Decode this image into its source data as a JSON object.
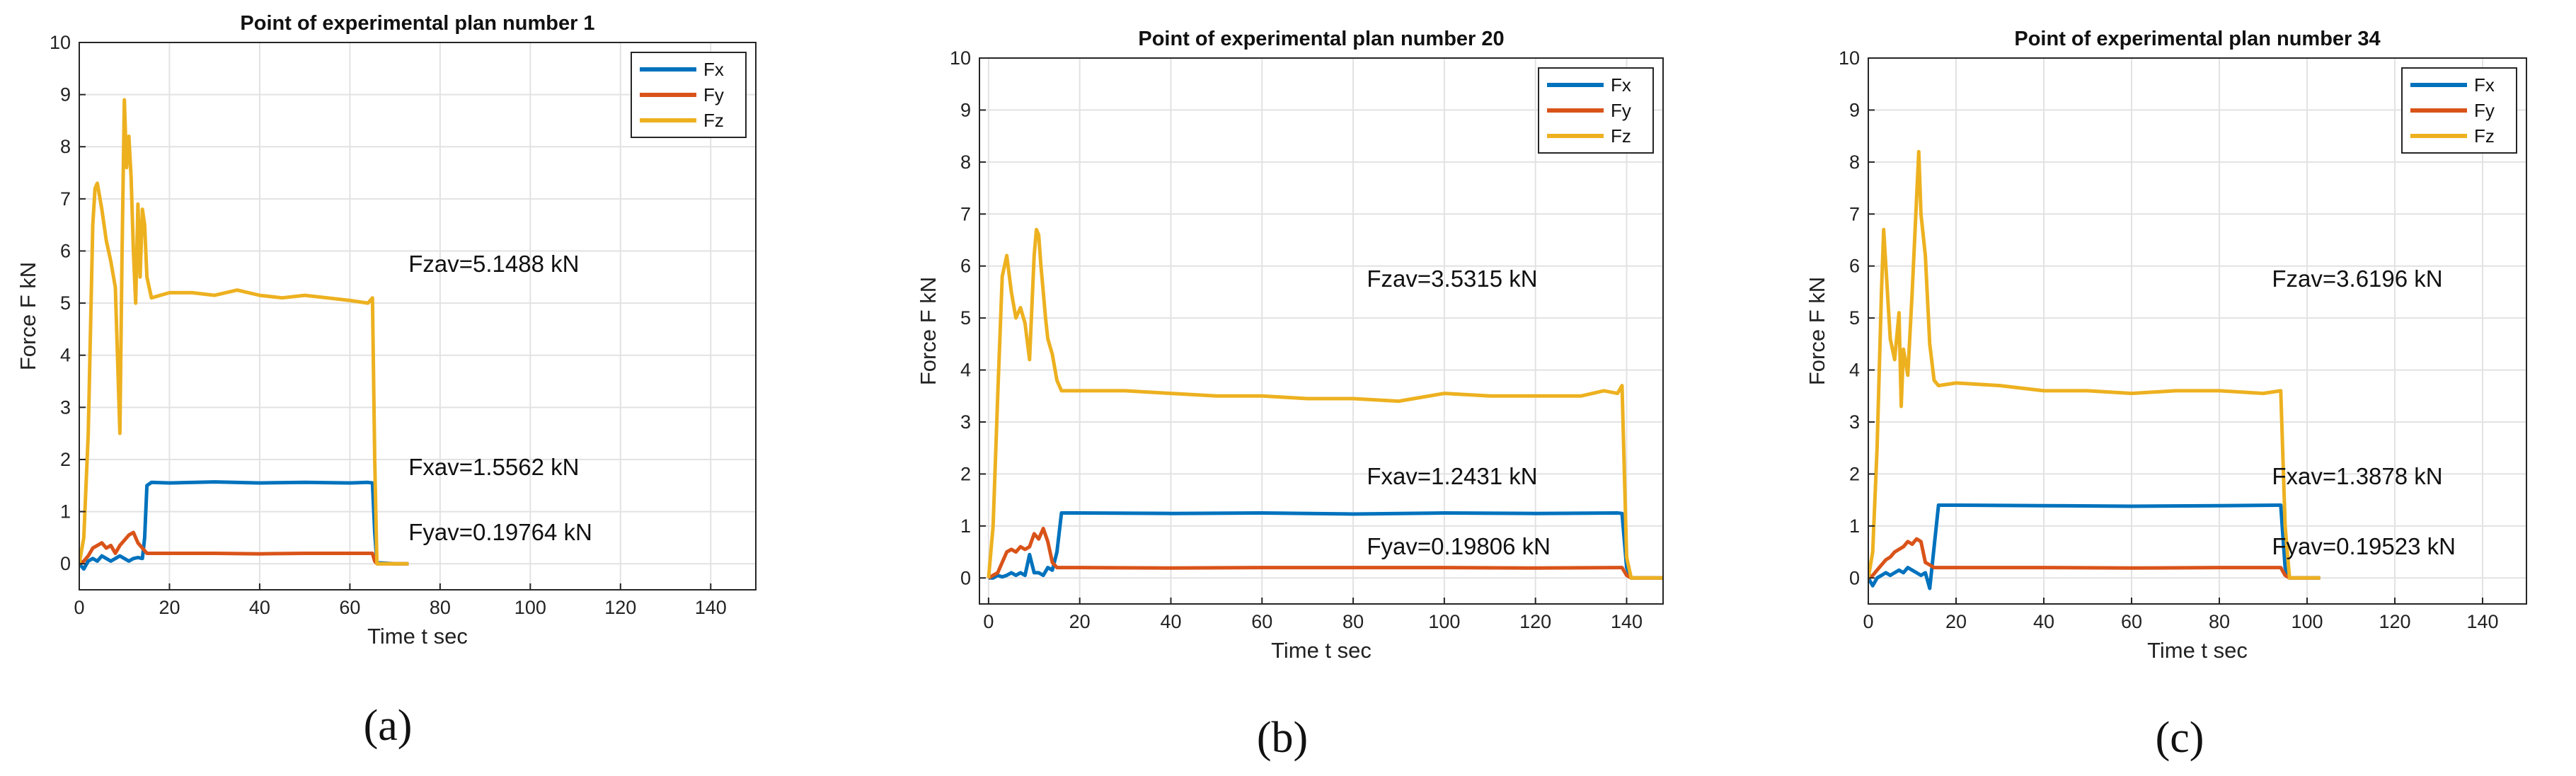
{
  "chart_data": [
    {
      "type": "line",
      "caption": "(a)",
      "title": "Point of experimental plan number 1",
      "xlabel": "Time t sec",
      "ylabel": "Force F kN",
      "xlim": [
        0,
        150
      ],
      "ylim": [
        -0.5,
        10
      ],
      "xticks": [
        0,
        20,
        40,
        60,
        80,
        100,
        120,
        140
      ],
      "yticks": [
        0,
        1,
        2,
        3,
        4,
        5,
        6,
        7,
        8,
        9,
        10
      ],
      "grid": true,
      "legend_position": "top-right",
      "annotations": [
        {
          "text": "Fzav=5.1488 kN",
          "x": 73,
          "y": 5.6
        },
        {
          "text": "Fxav=1.5562 kN",
          "x": 73,
          "y": 1.7
        },
        {
          "text": "Fyav=0.19764 kN",
          "x": 73,
          "y": 0.45
        }
      ],
      "series": [
        {
          "name": "Fx",
          "color": "#0072BD",
          "x": [
            0,
            1,
            2,
            3,
            4,
            5,
            6,
            7,
            8,
            9,
            10,
            11,
            12,
            13,
            14,
            14.5,
            15,
            16,
            20,
            30,
            40,
            50,
            60,
            64,
            65,
            65.5,
            66,
            70,
            73
          ],
          "y": [
            0,
            -0.1,
            0.05,
            0.1,
            0.05,
            0.15,
            0.1,
            0.05,
            0.1,
            0.15,
            0.1,
            0.05,
            0.1,
            0.12,
            0.1,
            0.5,
            1.5,
            1.56,
            1.55,
            1.57,
            1.55,
            1.56,
            1.55,
            1.56,
            1.55,
            0.6,
            0.02,
            0,
            0
          ]
        },
        {
          "name": "Fy",
          "color": "#D95319",
          "x": [
            0,
            1,
            2,
            3,
            4,
            5,
            6,
            7,
            8,
            9,
            10,
            11,
            12,
            13,
            14,
            15,
            20,
            30,
            40,
            50,
            60,
            65,
            65.5,
            66,
            70,
            73
          ],
          "y": [
            0,
            0.05,
            0.15,
            0.3,
            0.35,
            0.4,
            0.3,
            0.35,
            0.2,
            0.35,
            0.45,
            0.55,
            0.6,
            0.4,
            0.3,
            0.2,
            0.2,
            0.2,
            0.19,
            0.2,
            0.2,
            0.2,
            0.05,
            0,
            0,
            0
          ]
        },
        {
          "name": "Fz",
          "color": "#EDB120",
          "x": [
            0,
            1,
            2,
            3,
            3.5,
            4,
            5,
            6,
            7,
            8,
            9,
            9.5,
            10,
            10.5,
            11,
            11.5,
            12,
            12.5,
            13,
            13.5,
            14,
            14.5,
            15,
            16,
            20,
            25,
            30,
            35,
            40,
            45,
            50,
            55,
            60,
            64,
            65,
            65.5,
            66,
            70,
            73
          ],
          "y": [
            0,
            0.5,
            2.5,
            6.5,
            7.2,
            7.3,
            6.8,
            6.2,
            5.8,
            5.3,
            2.5,
            6.0,
            8.9,
            7.6,
            8.2,
            7.4,
            6.0,
            5.0,
            6.9,
            5.5,
            6.8,
            6.5,
            5.5,
            5.1,
            5.2,
            5.2,
            5.15,
            5.25,
            5.15,
            5.1,
            5.15,
            5.1,
            5.05,
            5.0,
            5.1,
            2.0,
            0,
            0,
            0
          ]
        }
      ]
    },
    {
      "type": "line",
      "caption": "(b)",
      "title": "Point of experimental plan number 20",
      "xlabel": "Time t sec",
      "ylabel": "Force F kN",
      "xlim": [
        -2,
        148
      ],
      "ylim": [
        -0.5,
        10
      ],
      "xticks": [
        0,
        20,
        40,
        60,
        80,
        100,
        120,
        140
      ],
      "yticks": [
        0,
        1,
        2,
        3,
        4,
        5,
        6,
        7,
        8,
        9,
        10
      ],
      "grid": true,
      "legend_position": "top-right",
      "annotations": [
        {
          "text": "Fzav=3.5315 kN",
          "x": 83,
          "y": 5.6
        },
        {
          "text": "Fxav=1.2431 kN",
          "x": 83,
          "y": 1.8
        },
        {
          "text": "Fyav=0.19806 kN",
          "x": 83,
          "y": 0.45
        }
      ],
      "series": [
        {
          "name": "Fx",
          "color": "#0072BD",
          "x": [
            0,
            1,
            2,
            3,
            4,
            5,
            6,
            7,
            8,
            9,
            10,
            11,
            12,
            13,
            14,
            15,
            16,
            20,
            40,
            60,
            80,
            100,
            120,
            138,
            139,
            140,
            141,
            145,
            148
          ],
          "y": [
            0,
            0,
            0.05,
            0.02,
            0.05,
            0.1,
            0.05,
            0.1,
            0.05,
            0.45,
            0.1,
            0.1,
            0.05,
            0.2,
            0.15,
            0.5,
            1.25,
            1.25,
            1.24,
            1.25,
            1.23,
            1.25,
            1.24,
            1.25,
            1.24,
            0.2,
            0,
            0,
            0
          ]
        },
        {
          "name": "Fy",
          "color": "#D95319",
          "x": [
            0,
            1,
            2,
            3,
            4,
            5,
            6,
            7,
            8,
            9,
            10,
            11,
            12,
            13,
            14,
            15,
            16,
            20,
            40,
            60,
            80,
            100,
            120,
            139,
            140,
            141,
            145,
            148
          ],
          "y": [
            0,
            0.05,
            0.1,
            0.3,
            0.5,
            0.55,
            0.5,
            0.6,
            0.55,
            0.6,
            0.85,
            0.75,
            0.95,
            0.7,
            0.3,
            0.2,
            0.2,
            0.2,
            0.19,
            0.2,
            0.2,
            0.2,
            0.19,
            0.2,
            0.05,
            0,
            0,
            0
          ]
        },
        {
          "name": "Fz",
          "color": "#EDB120",
          "x": [
            0,
            1,
            2,
            3,
            4,
            5,
            6,
            7,
            8,
            9,
            10,
            10.5,
            11,
            11.5,
            12,
            12.5,
            13,
            14,
            15,
            16,
            20,
            30,
            40,
            50,
            60,
            70,
            80,
            90,
            100,
            110,
            120,
            130,
            135,
            138,
            139,
            140,
            141,
            145,
            148
          ],
          "y": [
            0,
            1.0,
            3.5,
            5.8,
            6.2,
            5.5,
            5.0,
            5.2,
            4.9,
            4.2,
            6.2,
            6.7,
            6.6,
            6.0,
            5.5,
            5.0,
            4.6,
            4.3,
            3.8,
            3.6,
            3.6,
            3.6,
            3.55,
            3.5,
            3.5,
            3.45,
            3.45,
            3.4,
            3.55,
            3.5,
            3.5,
            3.5,
            3.6,
            3.55,
            3.7,
            0.4,
            0,
            0,
            0
          ]
        }
      ]
    },
    {
      "type": "line",
      "caption": "(c)",
      "title": "Point of experimental plan number 34",
      "xlabel": "Time t sec",
      "ylabel": "Force F kN",
      "xlim": [
        0,
        150
      ],
      "ylim": [
        -0.5,
        10
      ],
      "xticks": [
        0,
        20,
        40,
        60,
        80,
        100,
        120,
        140
      ],
      "yticks": [
        0,
        1,
        2,
        3,
        4,
        5,
        6,
        7,
        8,
        9,
        10
      ],
      "grid": true,
      "legend_position": "top-right",
      "annotations": [
        {
          "text": "Fzav=3.6196 kN",
          "x": 92,
          "y": 5.6
        },
        {
          "text": "Fxav=1.3878 kN",
          "x": 92,
          "y": 1.8
        },
        {
          "text": "Fyav=0.19523 kN",
          "x": 92,
          "y": 0.45
        }
      ],
      "series": [
        {
          "name": "Fx",
          "color": "#0072BD",
          "x": [
            0,
            1,
            2,
            3,
            4,
            5,
            6,
            7,
            8,
            9,
            10,
            11,
            12,
            13,
            14,
            15,
            16,
            20,
            40,
            60,
            80,
            93,
            94,
            95,
            96,
            100,
            103
          ],
          "y": [
            0,
            -0.15,
            0,
            0.05,
            0.1,
            0.05,
            0.1,
            0.15,
            0.1,
            0.2,
            0.15,
            0.1,
            0.05,
            0.1,
            -0.2,
            0.6,
            1.4,
            1.4,
            1.39,
            1.38,
            1.39,
            1.4,
            1.4,
            0.2,
            0,
            0,
            0
          ]
        },
        {
          "name": "Fy",
          "color": "#D95319",
          "x": [
            0,
            1,
            2,
            3,
            4,
            5,
            6,
            7,
            8,
            9,
            10,
            11,
            12,
            13,
            14,
            15,
            20,
            40,
            60,
            80,
            94,
            95,
            96,
            100,
            103
          ],
          "y": [
            0,
            0.05,
            0.15,
            0.25,
            0.35,
            0.4,
            0.5,
            0.55,
            0.6,
            0.7,
            0.65,
            0.75,
            0.7,
            0.3,
            0.25,
            0.2,
            0.2,
            0.2,
            0.19,
            0.2,
            0.2,
            0.05,
            0,
            0,
            0
          ]
        },
        {
          "name": "Fz",
          "color": "#EDB120",
          "x": [
            0,
            1,
            2,
            3,
            3.5,
            4,
            5,
            6,
            7,
            7.5,
            8,
            9,
            10,
            11,
            11.5,
            12,
            13,
            14,
            15,
            16,
            20,
            30,
            40,
            50,
            60,
            70,
            80,
            90,
            94,
            95,
            96,
            100,
            103
          ],
          "y": [
            0,
            0.5,
            2.5,
            5.5,
            6.7,
            6.0,
            4.6,
            4.2,
            5.1,
            3.3,
            4.4,
            3.9,
            5.5,
            7.3,
            8.2,
            7.0,
            6.2,
            4.5,
            3.8,
            3.7,
            3.75,
            3.7,
            3.6,
            3.6,
            3.55,
            3.6,
            3.6,
            3.55,
            3.6,
            1.0,
            0,
            0,
            0
          ]
        }
      ]
    }
  ]
}
